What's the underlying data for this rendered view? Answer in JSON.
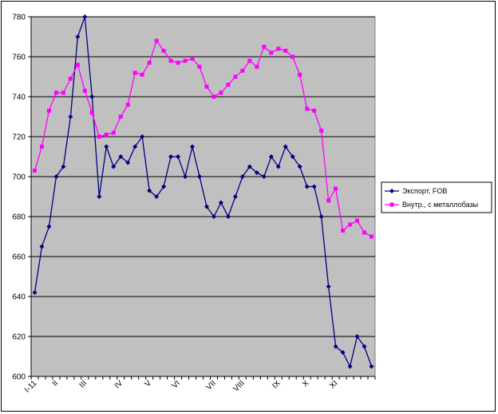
{
  "chart_data": {
    "type": "line",
    "title": "",
    "xlabel": "",
    "ylabel": "",
    "ylim": [
      600,
      780
    ],
    "y_ticks": [
      600,
      620,
      640,
      660,
      680,
      700,
      720,
      740,
      760,
      780
    ],
    "grid": "horizontal",
    "legend_position": "right",
    "plot_background": "#c0c0c0",
    "x_tick_labels": [
      {
        "label": "I-11",
        "index": 0
      },
      {
        "label": "II",
        "index": 3
      },
      {
        "label": "III",
        "index": 7
      },
      {
        "label": "IV",
        "index": 12
      },
      {
        "label": "V",
        "index": 16
      },
      {
        "label": "VI",
        "index": 20
      },
      {
        "label": "VII",
        "index": 25
      },
      {
        "label": "VIII",
        "index": 29
      },
      {
        "label": "IX",
        "index": 34
      },
      {
        "label": "X",
        "index": 38
      },
      {
        "label": "XI",
        "index": 42
      }
    ],
    "series": [
      {
        "name": "Экспорт, FOB",
        "color": "#000080",
        "marker": "diamond",
        "values": [
          642,
          665,
          675,
          700,
          705,
          730,
          770,
          780,
          740,
          690,
          715,
          705,
          710,
          707,
          715,
          720,
          693,
          690,
          695,
          710,
          710,
          700,
          715,
          700,
          685,
          680,
          687,
          680,
          690,
          700,
          705,
          702,
          700,
          710,
          705,
          715,
          710,
          705,
          695,
          695,
          680,
          645,
          615,
          612,
          605,
          620,
          615,
          605
        ]
      },
      {
        "name": "Внутр., с металлобазы",
        "color": "#ff00ff",
        "marker": "square",
        "values": [
          703,
          715,
          733,
          742,
          742,
          749,
          756,
          743,
          732,
          720,
          721,
          722,
          730,
          736,
          752,
          751,
          757,
          768,
          763,
          758,
          757,
          758,
          759,
          755,
          745,
          740,
          742,
          746,
          750,
          753,
          758,
          755,
          765,
          762,
          764,
          763,
          760,
          751,
          734,
          733,
          723,
          688,
          694,
          673,
          676,
          678,
          672,
          670
        ]
      }
    ]
  }
}
